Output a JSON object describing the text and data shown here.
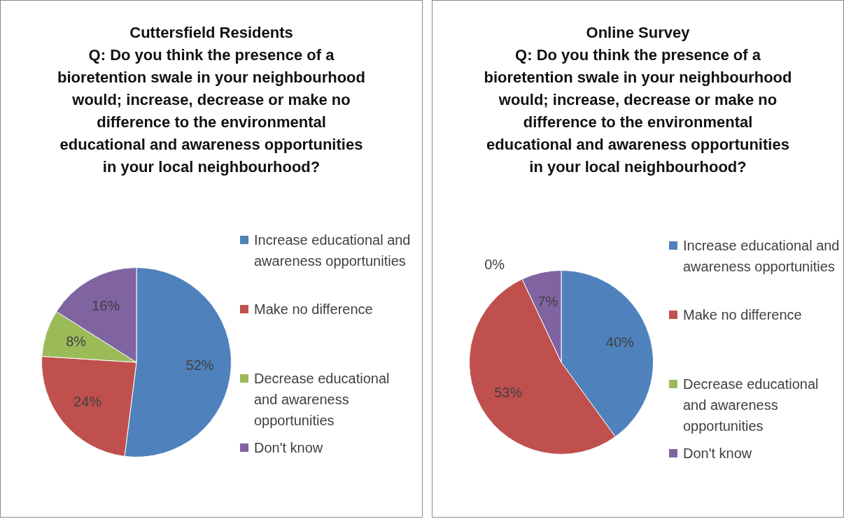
{
  "chart_data": [
    {
      "type": "pie",
      "title": "Cuttersfield Residents",
      "subtitle": "Q: Do you think the presence of a bioretention swale in your neighbourhood would; increase, decrease or make no difference to the environmental educational and awareness opportunities in your local neighbourhood?",
      "categories": [
        "Increase educational and awareness opportunities",
        "Make no difference",
        "Decrease educational and awareness opportunities",
        "Don't know"
      ],
      "values": [
        52,
        24,
        8,
        16
      ],
      "value_labels": [
        "52%",
        "24%",
        "8%",
        "16%"
      ],
      "colors": [
        "#4f81bd",
        "#c0504d",
        "#9bbb59",
        "#8064a2"
      ],
      "legend": "right"
    },
    {
      "type": "pie",
      "title": "Online Survey",
      "subtitle": "Q: Do you think the presence of a bioretention swale in your neighbourhood would; increase, decrease or make no difference to the environmental educational and awareness opportunities in your local neighbourhood?",
      "categories": [
        "Increase educational and awareness opportunities",
        "Make no difference",
        "Decrease educational and awareness opportunities",
        "Don't know"
      ],
      "values": [
        40,
        53,
        0,
        7
      ],
      "value_labels": [
        "40%",
        "53%",
        "0%",
        "7%"
      ],
      "colors": [
        "#4f81bd",
        "#c0504d",
        "#9bbb59",
        "#8064a2"
      ],
      "legend": "right"
    }
  ]
}
